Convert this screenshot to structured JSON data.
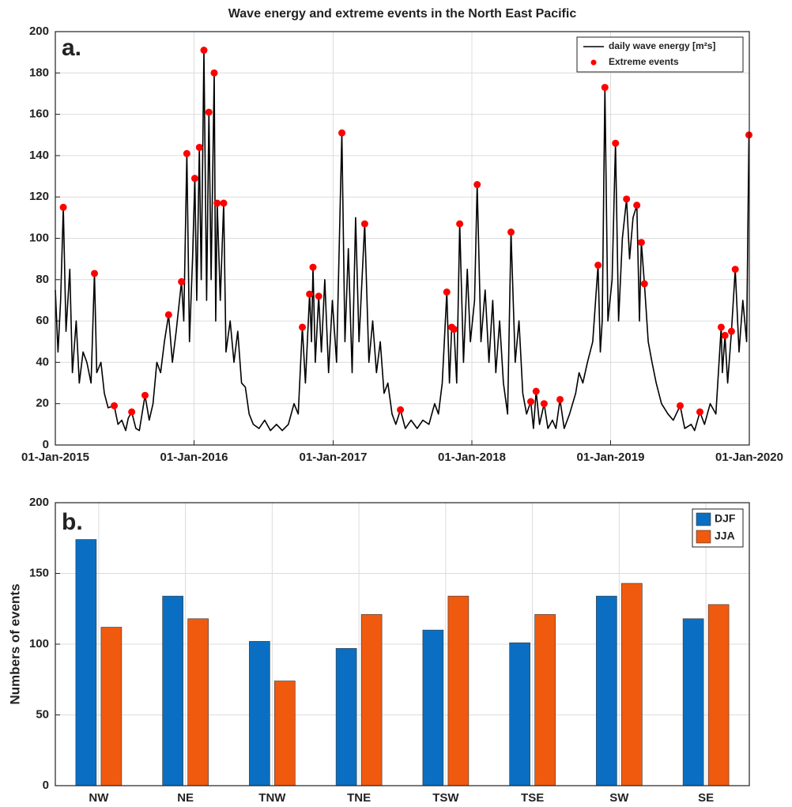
{
  "chart_data": [
    {
      "type": "line",
      "title": "Wave energy and extreme events in the North East Pacific",
      "panel_label": "a.",
      "xlim": [
        "2015-01-01",
        "2020-01-01"
      ],
      "xticks": [
        {
          "value": "2015-01-01",
          "label": "01-Jan-2015"
        },
        {
          "value": "2016-01-01",
          "label": "01-Jan-2016"
        },
        {
          "value": "2017-01-01",
          "label": "01-Jan-2017"
        },
        {
          "value": "2018-01-01",
          "label": "01-Jan-2018"
        },
        {
          "value": "2019-01-01",
          "label": "01-Jan-2019"
        },
        {
          "value": "2020-01-01",
          "label": "01-Jan-2020"
        }
      ],
      "ylim": [
        0,
        200
      ],
      "yticks": [
        0,
        20,
        40,
        60,
        80,
        100,
        120,
        140,
        160,
        180,
        200
      ],
      "grid": true,
      "legend": "upper right",
      "series": [
        {
          "name": "daily wave energy [m²s]",
          "color": "#000000",
          "mark": "line",
          "x": [
            "2015-01-01",
            "2015-01-08",
            "2015-01-15",
            "2015-01-22",
            "2015-01-29",
            "2015-02-08",
            "2015-02-15",
            "2015-02-25",
            "2015-03-05",
            "2015-03-15",
            "2015-03-25",
            "2015-04-05",
            "2015-04-14",
            "2015-04-20",
            "2015-05-01",
            "2015-05-10",
            "2015-05-20",
            "2015-06-05",
            "2015-06-15",
            "2015-06-25",
            "2015-07-05",
            "2015-07-12",
            "2015-07-21",
            "2015-08-01",
            "2015-08-10",
            "2015-08-25",
            "2015-09-05",
            "2015-09-15",
            "2015-09-25",
            "2015-10-05",
            "2015-10-15",
            "2015-10-26",
            "2015-11-05",
            "2015-11-15",
            "2015-11-29",
            "2015-12-05",
            "2015-12-13",
            "2015-12-20",
            "2015-12-28",
            "2016-01-03",
            "2016-01-08",
            "2016-01-15",
            "2016-01-20",
            "2016-01-27",
            "2016-02-03",
            "2016-02-09",
            "2016-02-15",
            "2016-02-23",
            "2016-02-27",
            "2016-03-02",
            "2016-03-10",
            "2016-03-19",
            "2016-03-25",
            "2016-04-05",
            "2016-04-15",
            "2016-04-25",
            "2016-05-05",
            "2016-05-15",
            "2016-05-25",
            "2016-06-05",
            "2016-06-20",
            "2016-07-05",
            "2016-07-20",
            "2016-08-05",
            "2016-08-20",
            "2016-09-05",
            "2016-09-20",
            "2016-10-01",
            "2016-10-12",
            "2016-10-20",
            "2016-10-31",
            "2016-11-05",
            "2016-11-09",
            "2016-11-15",
            "2016-11-24",
            "2016-12-01",
            "2016-12-10",
            "2016-12-20",
            "2016-12-30",
            "2017-01-10",
            "2017-01-24",
            "2017-02-01",
            "2017-02-10",
            "2017-02-20",
            "2017-03-01",
            "2017-03-10",
            "2017-03-25",
            "2017-04-05",
            "2017-04-15",
            "2017-04-25",
            "2017-05-05",
            "2017-05-15",
            "2017-05-25",
            "2017-06-05",
            "2017-06-15",
            "2017-06-27",
            "2017-07-10",
            "2017-07-25",
            "2017-08-10",
            "2017-08-25",
            "2017-09-10",
            "2017-09-25",
            "2017-10-05",
            "2017-10-15",
            "2017-10-27",
            "2017-11-03",
            "2017-11-09",
            "2017-11-15",
            "2017-11-22",
            "2017-11-30",
            "2017-12-10",
            "2017-12-20",
            "2017-12-28",
            "2018-01-08",
            "2018-01-15",
            "2018-01-25",
            "2018-02-05",
            "2018-02-15",
            "2018-02-25",
            "2018-03-05",
            "2018-03-15",
            "2018-03-25",
            "2018-04-05",
            "2018-04-14",
            "2018-04-25",
            "2018-05-05",
            "2018-05-15",
            "2018-05-25",
            "2018-06-05",
            "2018-06-12",
            "2018-06-19",
            "2018-06-28",
            "2018-07-10",
            "2018-07-20",
            "2018-08-01",
            "2018-08-10",
            "2018-08-21",
            "2018-09-01",
            "2018-09-15",
            "2018-10-01",
            "2018-10-10",
            "2018-10-20",
            "2018-11-01",
            "2018-11-15",
            "2018-11-29",
            "2018-12-05",
            "2018-12-10",
            "2018-12-17",
            "2018-12-25",
            "2019-01-05",
            "2019-01-14",
            "2019-01-22",
            "2019-02-01",
            "2019-02-12",
            "2019-02-20",
            "2019-03-01",
            "2019-03-11",
            "2019-03-18",
            "2019-03-23",
            "2019-03-31",
            "2019-04-10",
            "2019-04-20",
            "2019-05-01",
            "2019-05-15",
            "2019-06-01",
            "2019-06-15",
            "2019-07-03",
            "2019-07-15",
            "2019-08-01",
            "2019-08-10",
            "2019-08-24",
            "2019-09-05",
            "2019-09-20",
            "2019-10-05",
            "2019-10-19",
            "2019-10-22",
            "2019-10-29",
            "2019-11-05",
            "2019-11-15",
            "2019-11-25",
            "2019-12-05",
            "2019-12-15",
            "2019-12-25",
            "2019-12-31"
          ],
          "values": [
            75,
            45,
            70,
            115,
            55,
            85,
            35,
            60,
            30,
            45,
            40,
            30,
            83,
            35,
            40,
            25,
            18,
            19,
            10,
            12,
            7,
            13,
            16,
            8,
            7,
            24,
            12,
            20,
            40,
            35,
            50,
            63,
            40,
            55,
            79,
            60,
            141,
            50,
            90,
            129,
            70,
            144,
            80,
            191,
            70,
            161,
            80,
            180,
            60,
            117,
            70,
            117,
            45,
            60,
            40,
            55,
            30,
            28,
            15,
            10,
            8,
            12,
            7,
            10,
            7,
            10,
            20,
            15,
            57,
            30,
            73,
            50,
            86,
            40,
            72,
            45,
            80,
            35,
            70,
            40,
            151,
            50,
            95,
            35,
            110,
            50,
            107,
            40,
            60,
            35,
            50,
            25,
            30,
            15,
            10,
            17,
            8,
            12,
            8,
            12,
            10,
            20,
            15,
            30,
            74,
            30,
            57,
            56,
            30,
            107,
            40,
            85,
            50,
            70,
            126,
            50,
            75,
            40,
            70,
            35,
            60,
            30,
            15,
            103,
            40,
            60,
            25,
            15,
            21,
            8,
            26,
            10,
            20,
            8,
            12,
            8,
            22,
            8,
            15,
            25,
            35,
            30,
            40,
            50,
            87,
            45,
            60,
            173,
            60,
            80,
            146,
            60,
            100,
            119,
            90,
            110,
            116,
            60,
            98,
            78,
            50,
            40,
            30,
            20,
            15,
            12,
            19,
            8,
            10,
            7,
            16,
            10,
            20,
            15,
            57,
            35,
            53,
            30,
            55,
            85,
            45,
            70,
            50,
            150
          ]
        },
        {
          "name": "Extreme events",
          "color": "#ff0000",
          "mark": "dot",
          "x": [
            "2015-01-22",
            "2015-04-14",
            "2015-06-05",
            "2015-07-21",
            "2015-08-25",
            "2015-10-26",
            "2015-11-29",
            "2015-12-13",
            "2016-01-03",
            "2016-01-15",
            "2016-01-27",
            "2016-02-09",
            "2016-02-23",
            "2016-03-02",
            "2016-03-19",
            "2016-10-12",
            "2016-10-31",
            "2016-11-09",
            "2016-11-24",
            "2017-01-24",
            "2017-03-25",
            "2017-06-27",
            "2017-10-27",
            "2017-11-09",
            "2017-11-15",
            "2017-11-30",
            "2018-01-15",
            "2018-04-14",
            "2018-06-05",
            "2018-06-19",
            "2018-07-10",
            "2018-08-21",
            "2018-11-29",
            "2018-12-17",
            "2019-01-14",
            "2019-02-12",
            "2019-03-11",
            "2019-03-23",
            "2019-03-31",
            "2019-07-03",
            "2019-08-24",
            "2019-10-19",
            "2019-10-29",
            "2019-11-15",
            "2019-11-25",
            "2019-12-31"
          ],
          "values": [
            115,
            83,
            19,
            16,
            24,
            63,
            79,
            141,
            129,
            144,
            191,
            161,
            180,
            117,
            117,
            57,
            73,
            86,
            72,
            151,
            107,
            17,
            74,
            57,
            56,
            107,
            126,
            103,
            21,
            26,
            20,
            22,
            87,
            173,
            146,
            119,
            116,
            98,
            78,
            19,
            16,
            57,
            53,
            55,
            85,
            150
          ]
        }
      ]
    },
    {
      "type": "bar",
      "panel_label": "b.",
      "y_label": "Numbers of events",
      "categories": [
        "NW",
        "NE",
        "TNW",
        "TNE",
        "TSW",
        "TSE",
        "SW",
        "SE"
      ],
      "ylim": [
        0,
        200
      ],
      "yticks": [
        0,
        50,
        100,
        150,
        200
      ],
      "grid": true,
      "legend": "upper right",
      "series": [
        {
          "name": "DJF",
          "color": "#0a6fc2",
          "values": [
            174,
            134,
            102,
            97,
            110,
            101,
            134,
            118
          ]
        },
        {
          "name": "JJA",
          "color": "#f05a0f",
          "values": [
            112,
            118,
            74,
            121,
            134,
            121,
            143,
            128
          ]
        }
      ]
    }
  ]
}
